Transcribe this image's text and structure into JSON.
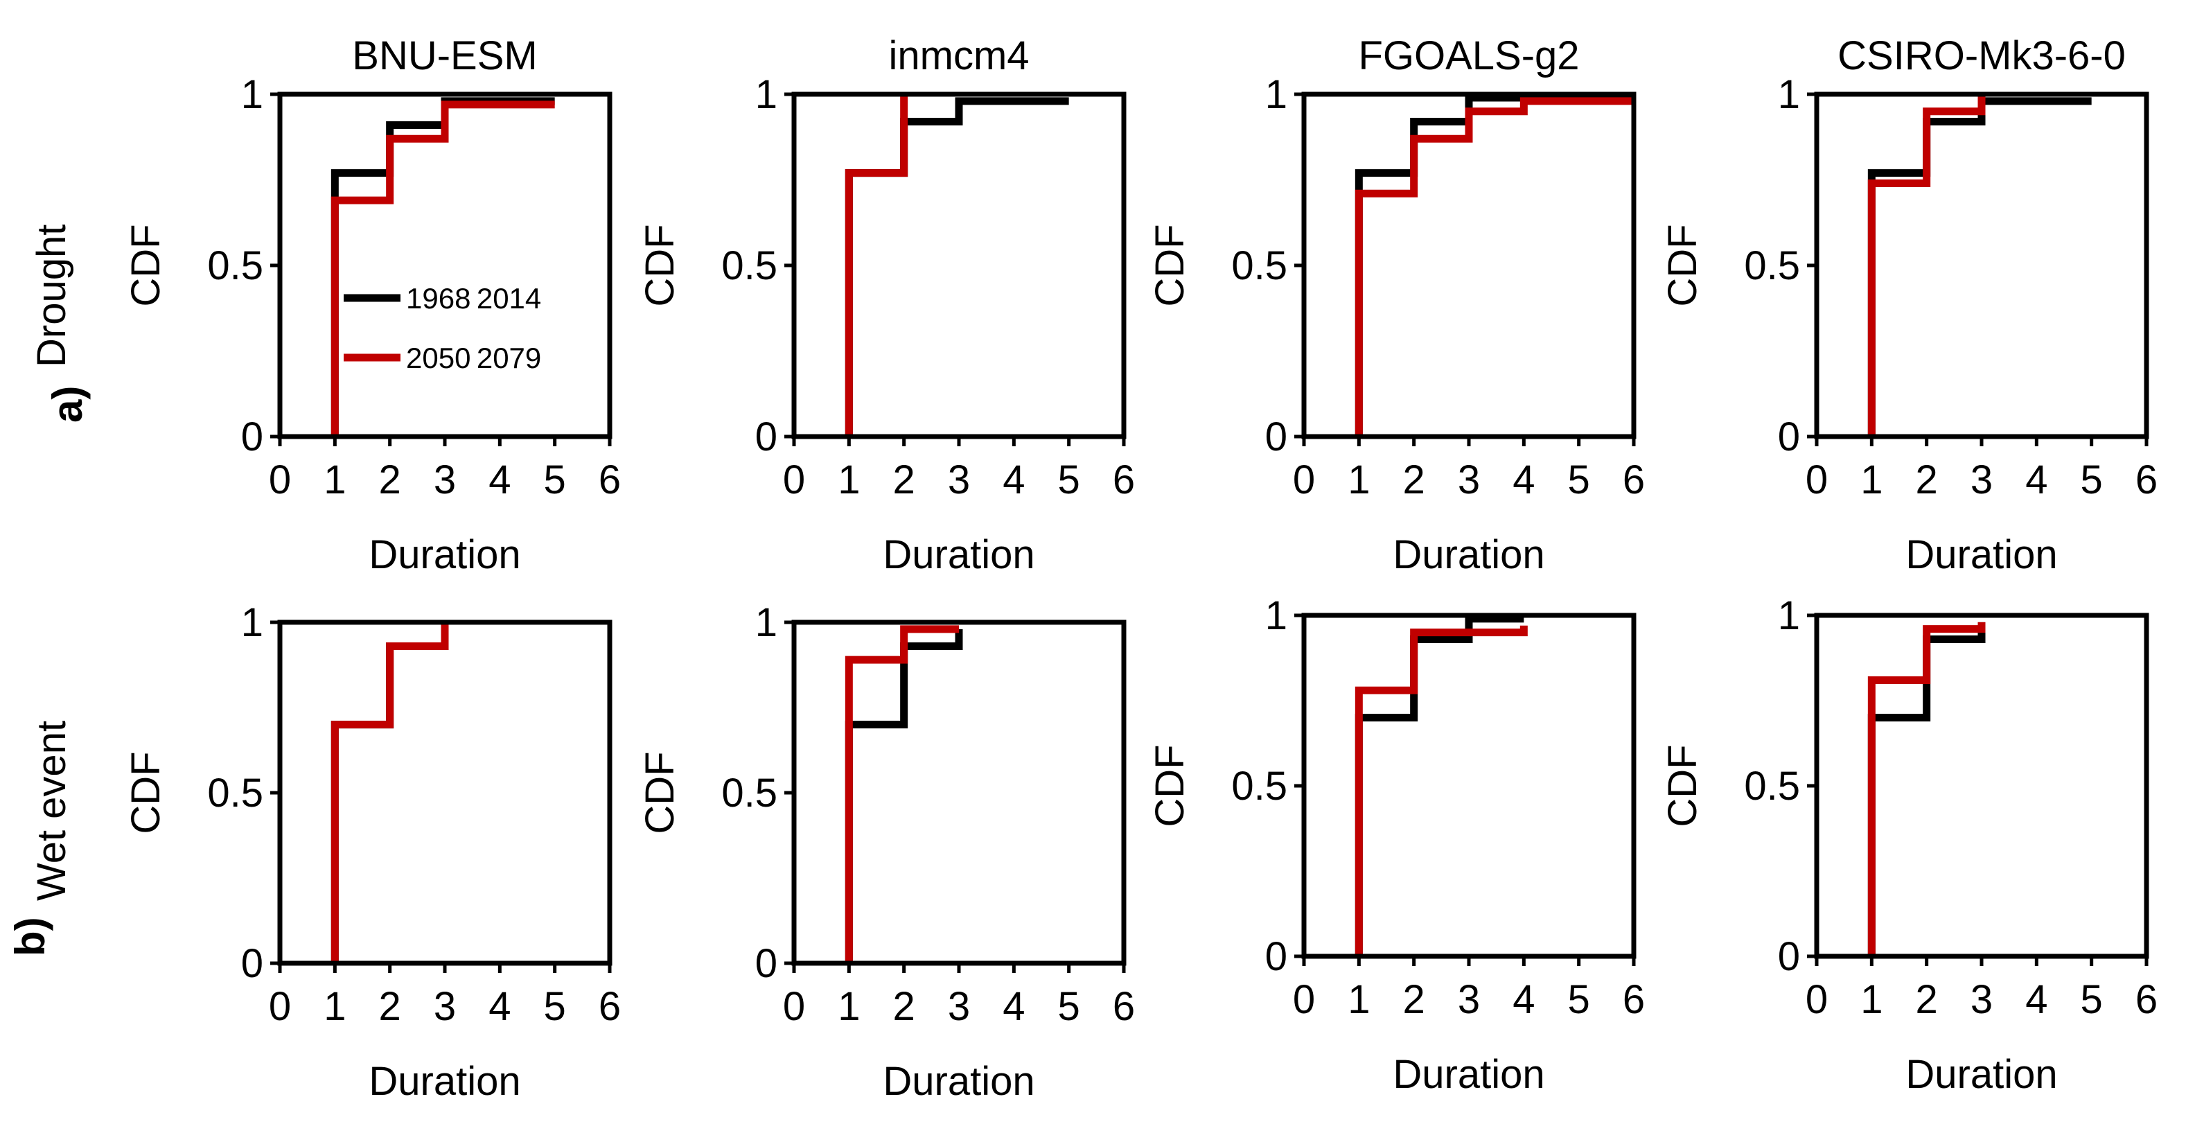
{
  "colors": {
    "series_1968_2014": "#000000",
    "series_2050_2079": "#c00000",
    "frame": "#000000",
    "background": "#ffffff"
  },
  "rows": [
    {
      "letter": "a)",
      "label": "Drought"
    },
    {
      "letter": "b)",
      "label": "Wet event"
    }
  ],
  "legend": [
    "1968 2014",
    "2050 2079"
  ],
  "chart_data": [
    {
      "type": "line",
      "step": true,
      "row": "Drought",
      "title": "BNU-ESM",
      "xlabel": "Duration",
      "ylabel": "CDF",
      "xlim": [
        0,
        6
      ],
      "ylim": [
        0,
        1
      ],
      "xticks": [
        "0",
        "1",
        "2",
        "3",
        "4",
        "5",
        "6"
      ],
      "yticks": [
        "0",
        "0.5",
        "1"
      ],
      "legend": true,
      "series": [
        {
          "name": "1968 − 2014",
          "x": [
            1,
            2,
            3,
            5
          ],
          "y": [
            0.77,
            0.91,
            0.98,
            0.98
          ]
        },
        {
          "name": "2050 − 2079",
          "x": [
            1,
            2,
            3,
            5
          ],
          "y": [
            0.69,
            0.87,
            0.97,
            0.97
          ]
        }
      ]
    },
    {
      "type": "line",
      "step": true,
      "row": "Drought",
      "title": "inmcm4",
      "xlabel": "Duration",
      "ylabel": "CDF",
      "xlim": [
        0,
        6
      ],
      "ylim": [
        0,
        1
      ],
      "xticks": [
        "0",
        "1",
        "2",
        "3",
        "4",
        "5",
        "6"
      ],
      "yticks": [
        "0",
        "0.5",
        "1"
      ],
      "legend": false,
      "series": [
        {
          "name": "1968 − 2014",
          "x": [
            1,
            2,
            3,
            5
          ],
          "y": [
            0.77,
            0.92,
            0.98,
            0.98
          ]
        },
        {
          "name": "2050 − 2079",
          "x": [
            1,
            2
          ],
          "y": [
            0.77,
            1.0
          ]
        }
      ]
    },
    {
      "type": "line",
      "step": true,
      "row": "Drought",
      "title": "FGOALS-g2",
      "xlabel": "Duration",
      "ylabel": "CDF",
      "xlim": [
        0,
        6
      ],
      "ylim": [
        0,
        1
      ],
      "xticks": [
        "0",
        "1",
        "2",
        "3",
        "4",
        "5",
        "6"
      ],
      "yticks": [
        "0",
        "0.5",
        "1"
      ],
      "legend": false,
      "series": [
        {
          "name": "1968 − 2014",
          "x": [
            1,
            2,
            3,
            6
          ],
          "y": [
            0.77,
            0.92,
            0.99,
            0.99
          ]
        },
        {
          "name": "2050 − 2079",
          "x": [
            1,
            2,
            3,
            4,
            6
          ],
          "y": [
            0.71,
            0.87,
            0.95,
            0.98,
            0.98
          ]
        }
      ]
    },
    {
      "type": "line",
      "step": true,
      "row": "Drought",
      "title": "CSIRO-Mk3-6-0",
      "xlabel": "Duration",
      "ylabel": "CDF",
      "xlim": [
        0,
        6
      ],
      "ylim": [
        0,
        1
      ],
      "xticks": [
        "0",
        "1",
        "2",
        "3",
        "4",
        "5",
        "6"
      ],
      "yticks": [
        "0",
        "0.5",
        "1"
      ],
      "legend": false,
      "series": [
        {
          "name": "1968 − 2014",
          "x": [
            1,
            2,
            3,
            5
          ],
          "y": [
            0.77,
            0.92,
            0.98,
            0.98
          ]
        },
        {
          "name": "2050 − 2079",
          "x": [
            1,
            2,
            3
          ],
          "y": [
            0.74,
            0.95,
            1.0
          ]
        }
      ]
    },
    {
      "type": "line",
      "step": true,
      "row": "Wet event",
      "title": "",
      "xlabel": "Duration",
      "ylabel": "CDF",
      "xlim": [
        0,
        6
      ],
      "ylim": [
        0,
        1
      ],
      "xticks": [
        "0",
        "1",
        "2",
        "3",
        "4",
        "5",
        "6"
      ],
      "yticks": [
        "0",
        "0.5",
        "1"
      ],
      "legend": false,
      "series": [
        {
          "name": "1968 − 2014",
          "x": [
            1,
            2,
            3
          ],
          "y": [
            0.7,
            0.93,
            1.0
          ]
        },
        {
          "name": "2050 − 2079",
          "x": [
            1,
            2,
            3
          ],
          "y": [
            0.7,
            0.93,
            1.0
          ]
        }
      ]
    },
    {
      "type": "line",
      "step": true,
      "row": "Wet event",
      "title": "",
      "xlabel": "Duration",
      "ylabel": "CDF",
      "xlim": [
        0,
        6
      ],
      "ylim": [
        0,
        1
      ],
      "xticks": [
        "0",
        "1",
        "2",
        "3",
        "4",
        "5",
        "6"
      ],
      "yticks": [
        "0",
        "0.5",
        "1"
      ],
      "legend": false,
      "series": [
        {
          "name": "1968 − 2014",
          "x": [
            1,
            2,
            3
          ],
          "y": [
            0.7,
            0.93,
            0.98
          ]
        },
        {
          "name": "2050 − 2079",
          "x": [
            1,
            2,
            3
          ],
          "y": [
            0.89,
            0.98,
            0.98
          ]
        }
      ]
    },
    {
      "type": "line",
      "step": true,
      "row": "Wet event",
      "title": "",
      "xlabel": "Duration",
      "ylabel": "CDF",
      "xlim": [
        0,
        6
      ],
      "ylim": [
        0,
        1
      ],
      "xticks": [
        "0",
        "1",
        "2",
        "3",
        "4",
        "5",
        "6"
      ],
      "yticks": [
        "0",
        "0.5",
        "1"
      ],
      "legend": false,
      "series": [
        {
          "name": "1968 − 2014",
          "x": [
            1,
            2,
            3,
            4
          ],
          "y": [
            0.7,
            0.93,
            0.99,
            0.99
          ]
        },
        {
          "name": "2050 − 2079",
          "x": [
            1,
            2,
            4
          ],
          "y": [
            0.78,
            0.95,
            0.97
          ]
        }
      ]
    },
    {
      "type": "line",
      "step": true,
      "row": "Wet event",
      "title": "",
      "xlabel": "Duration",
      "ylabel": "CDF",
      "xlim": [
        0,
        6
      ],
      "ylim": [
        0,
        1
      ],
      "xticks": [
        "0",
        "1",
        "2",
        "3",
        "4",
        "5",
        "6"
      ],
      "yticks": [
        "0",
        "0.5",
        "1"
      ],
      "legend": false,
      "series": [
        {
          "name": "1968 − 2014",
          "x": [
            1,
            2,
            3
          ],
          "y": [
            0.7,
            0.93,
            0.98
          ]
        },
        {
          "name": "2050 − 2079",
          "x": [
            1,
            2,
            3
          ],
          "y": [
            0.81,
            0.96,
            0.98
          ]
        }
      ]
    }
  ]
}
